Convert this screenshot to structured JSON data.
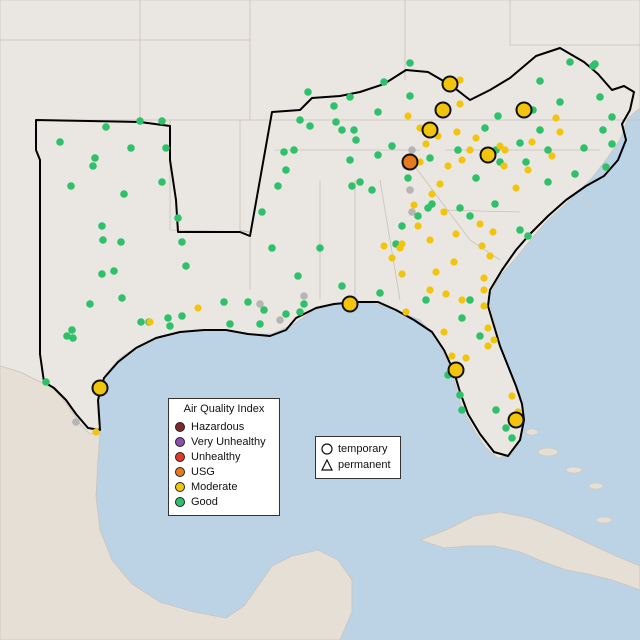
{
  "legend": {
    "title": "Air Quality Index",
    "categories": [
      {
        "label": "Hazardous",
        "color": "#7e2a2a"
      },
      {
        "label": "Very Unhealthy",
        "color": "#8a4fb0"
      },
      {
        "label": "Unhealthy",
        "color": "#e03a26"
      },
      {
        "label": "USG",
        "color": "#e57b1c"
      },
      {
        "label": "Moderate",
        "color": "#f2c40c"
      },
      {
        "label": "Good",
        "color": "#2fc06a"
      }
    ]
  },
  "shape_legend": {
    "temporary": "temporary",
    "permanent": "permanent"
  },
  "colors": {
    "ocean": "#bcd3e6",
    "land": "#eae7e2",
    "inactive_monitor": "#b5b5b5"
  }
}
